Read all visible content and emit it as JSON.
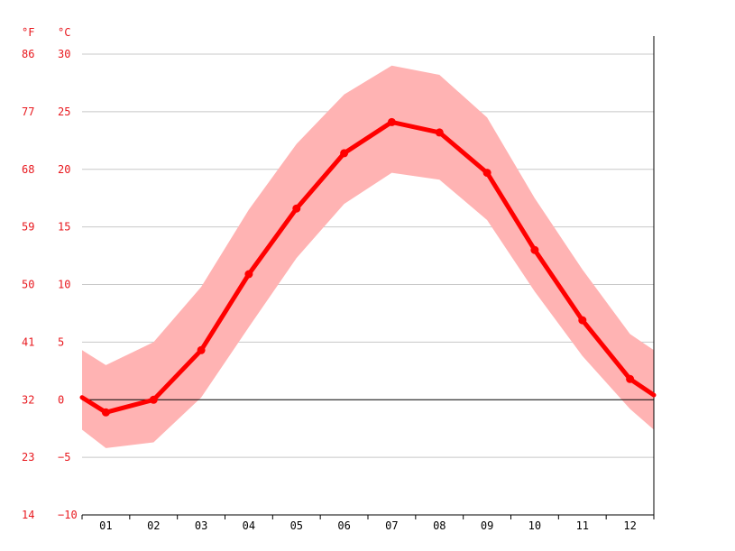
{
  "chart_data": {
    "type": "line",
    "fahrenheit_unit_label": "°F",
    "celsius_unit_label": "°C",
    "categories": [
      "01",
      "02",
      "03",
      "04",
      "05",
      "06",
      "07",
      "08",
      "09",
      "10",
      "11",
      "12"
    ],
    "series": [
      {
        "values": [
          -1.1,
          0.0,
          4.3,
          10.9,
          16.6,
          21.4,
          24.1,
          23.2,
          19.7,
          13.0,
          6.9,
          1.8
        ]
      }
    ],
    "band_upper": [
      4.3,
      3.0,
      5.0,
      9.8,
      16.5,
      22.2,
      26.5,
      29.0,
      28.2,
      24.5,
      17.5,
      11.3,
      5.7,
      4.3
    ],
    "band_lower": [
      -2.6,
      -4.2,
      -3.7,
      0.2,
      6.3,
      12.3,
      17.0,
      19.7,
      19.1,
      15.6,
      9.4,
      3.8,
      -0.8,
      -2.6
    ],
    "line_start": 0.2,
    "line_end": 0.4,
    "ylim": [
      -10,
      30
    ],
    "celsius_ticks": [
      "30",
      "25",
      "20",
      "15",
      "10",
      "5",
      "0",
      "−5",
      "−10"
    ],
    "fahrenheit_ticks": [
      "86",
      "77",
      "68",
      "59",
      "50",
      "41",
      "32",
      "23",
      "14"
    ],
    "grid": true,
    "colors": {
      "line": "#ff0000",
      "band": "#ffb3b3",
      "labels": "#e8181e",
      "grid": "#c8c8c8",
      "zero_line": "#000000"
    }
  }
}
